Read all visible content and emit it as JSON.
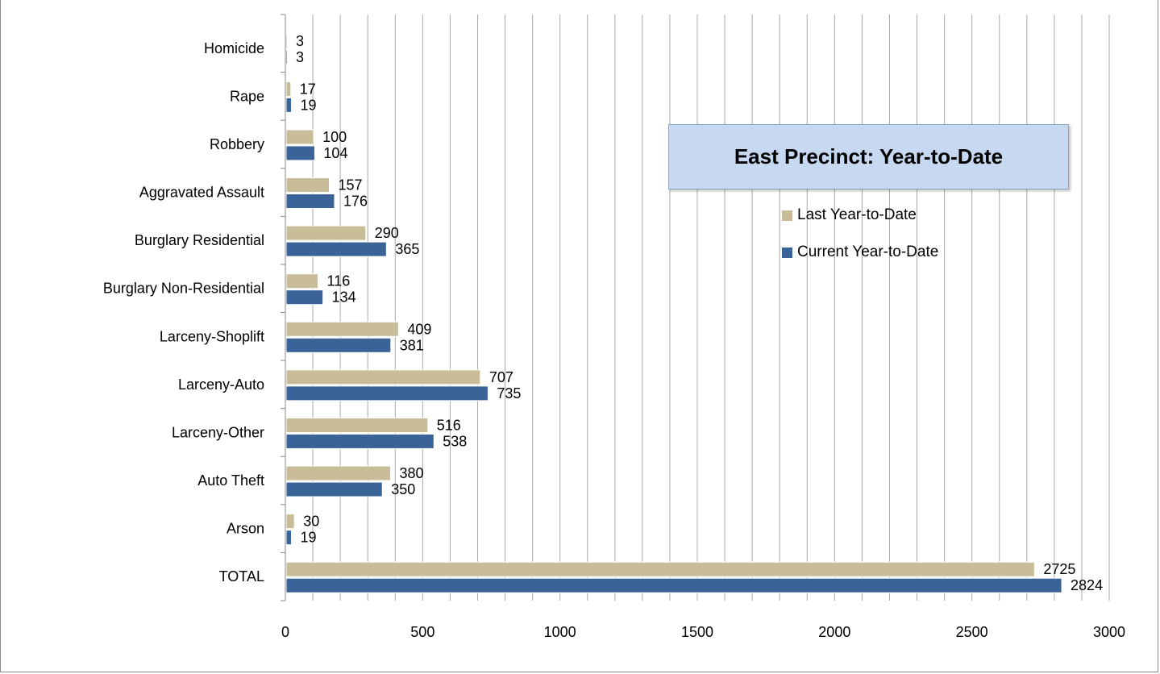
{
  "chart_data": {
    "type": "bar",
    "orientation": "horizontal",
    "title": "East Precinct: Year-to-Date",
    "categories": [
      "Homicide",
      "Rape",
      "Robbery",
      "Aggravated Assault",
      "Burglary Residential",
      "Burglary Non-Residential",
      "Larceny-Shoplift",
      "Larceny-Auto",
      "Larceny-Other",
      "Auto Theft",
      "Arson",
      "TOTAL"
    ],
    "series": [
      {
        "name": "Last Year-to-Date",
        "color": "#c8bd98",
        "values": [
          3,
          17,
          100,
          157,
          290,
          116,
          409,
          707,
          516,
          380,
          30,
          2725
        ]
      },
      {
        "name": "Current Year-to-Date",
        "color": "#3a6498",
        "values": [
          3,
          19,
          104,
          176,
          365,
          134,
          381,
          735,
          538,
          350,
          19,
          2824
        ]
      }
    ],
    "xlim": [
      0,
      3000
    ],
    "xticks": [
      "0",
      "500",
      "1000",
      "1500",
      "2000",
      "2500",
      "3000"
    ],
    "minor_grid_step": 100,
    "grid": true,
    "legend_position": "right, below title"
  }
}
